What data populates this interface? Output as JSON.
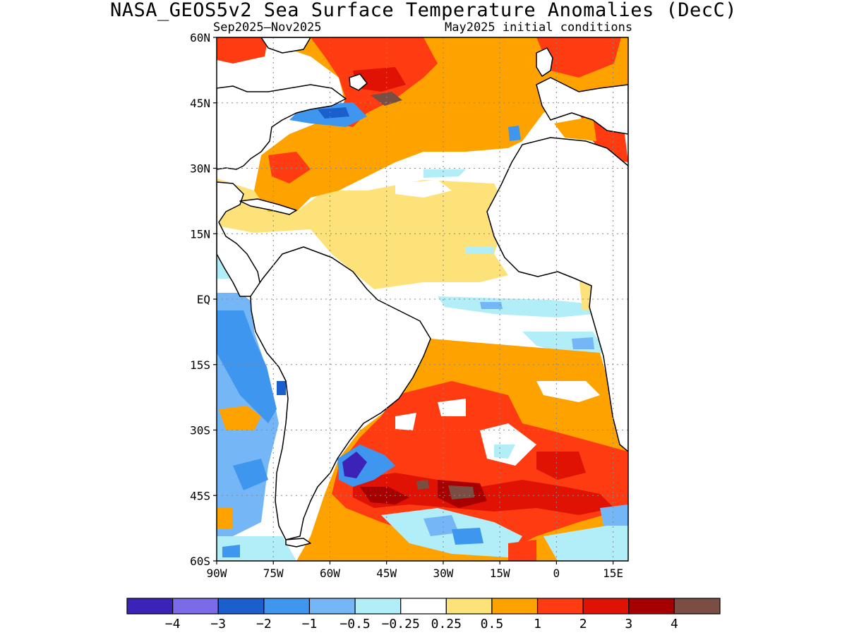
{
  "header": {
    "title": "NASA_GEOS5v2 Sea Surface Temperature Anomalies (DecC)",
    "period": "Sep2025–Nov2025",
    "init": "May2025 initial conditions"
  },
  "map": {
    "lon_range": [
      -90,
      19
    ],
    "lat_range": [
      -60,
      60
    ],
    "lat_ticks": [
      {
        "v": 60,
        "label": "60N"
      },
      {
        "v": 45,
        "label": "45N"
      },
      {
        "v": 30,
        "label": "30N"
      },
      {
        "v": 15,
        "label": "15N"
      },
      {
        "v": 0,
        "label": "EQ"
      },
      {
        "v": -15,
        "label": "15S"
      },
      {
        "v": -30,
        "label": "30S"
      },
      {
        "v": -45,
        "label": "45S"
      },
      {
        "v": -60,
        "label": "60S"
      }
    ],
    "lon_ticks": [
      {
        "v": -90,
        "label": "90W"
      },
      {
        "v": -75,
        "label": "75W"
      },
      {
        "v": -60,
        "label": "60W"
      },
      {
        "v": -45,
        "label": "45W"
      },
      {
        "v": -30,
        "label": "30W"
      },
      {
        "v": -15,
        "label": "15W"
      },
      {
        "v": 0,
        "label": "0"
      },
      {
        "v": 15,
        "label": "15E"
      }
    ],
    "grid": true
  },
  "colorbar": {
    "colors": [
      "#3c23b8",
      "#7b6be8",
      "#1a5fcc",
      "#3f96ee",
      "#74b6f6",
      "#b1eef8",
      "#ffffff",
      "#fde27a",
      "#fea200",
      "#ff3b12",
      "#df1204",
      "#a60000",
      "#7a4e42"
    ],
    "labels": [
      "−4",
      "−3",
      "−2",
      "−1",
      "−0.5",
      "−0.25",
      "0.25",
      "0.5",
      "1",
      "2",
      "3",
      "4"
    ]
  }
}
